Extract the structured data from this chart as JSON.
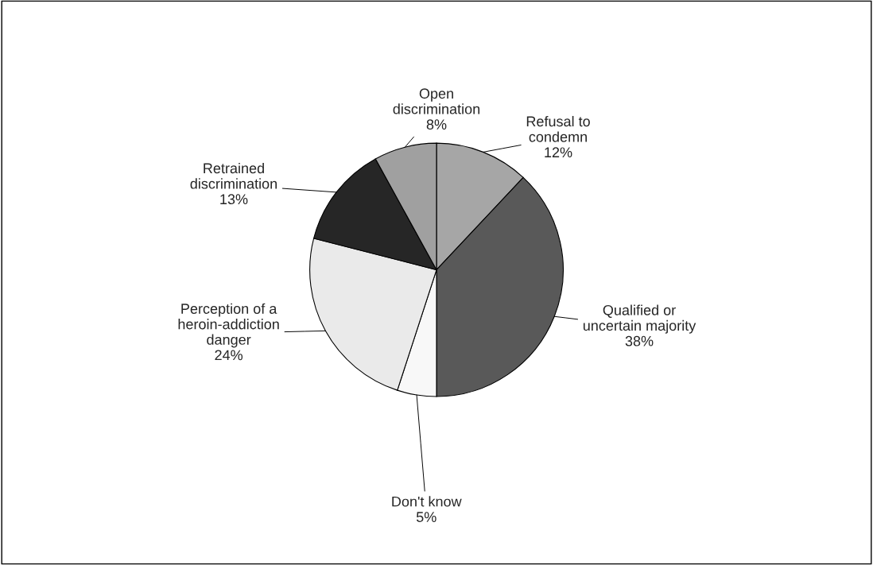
{
  "chart_data": {
    "type": "pie",
    "categories": [
      "Refusal to\ncondemn",
      "Qualified or\nuncertain majority",
      "Don't know",
      "Perception of a\nheroin-addiction\ndanger",
      "Retrained\ndiscrimination",
      "Open\ndiscrimination"
    ],
    "values": [
      12,
      38,
      5,
      24,
      13,
      8
    ],
    "colors": [
      "#a6a6a6",
      "#595959",
      "#f8f8f8",
      "#eaeaea",
      "#262626",
      "#a0a0a0"
    ],
    "value_labels": [
      "12%",
      "38%",
      "5%",
      "24%",
      "13%",
      "8%"
    ]
  }
}
